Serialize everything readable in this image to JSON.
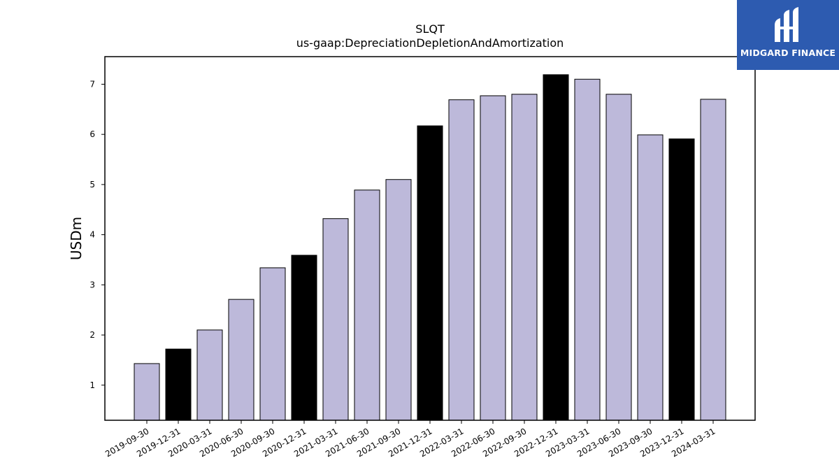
{
  "chart_data": {
    "type": "bar",
    "title": "SLQT",
    "subtitle": "us-gaap:DepreciationDepletionAndAmortization",
    "xlabel": "",
    "ylabel": "USDm",
    "ylim": [
      0.3,
      7.55
    ],
    "yticks": [
      1,
      2,
      3,
      4,
      5,
      6,
      7
    ],
    "grid": false,
    "categories": [
      "2019-09-30",
      "2019-12-31",
      "2020-03-31",
      "2020-06-30",
      "2020-09-30",
      "2020-12-31",
      "2021-03-31",
      "2021-06-30",
      "2021-09-30",
      "2021-12-31",
      "2022-03-31",
      "2022-06-30",
      "2022-09-30",
      "2022-12-31",
      "2023-03-31",
      "2023-06-30",
      "2023-09-30",
      "2023-12-31",
      "2024-03-31"
    ],
    "values": [
      1.43,
      1.72,
      2.1,
      2.71,
      3.34,
      3.59,
      4.32,
      4.89,
      5.1,
      6.17,
      6.69,
      6.77,
      6.8,
      7.19,
      7.1,
      6.8,
      5.99,
      5.91,
      6.7
    ],
    "bar_colors": [
      "#bdb9da",
      "#000000",
      "#bdb9da",
      "#bdb9da",
      "#bdb9da",
      "#000000",
      "#bdb9da",
      "#bdb9da",
      "#bdb9da",
      "#000000",
      "#bdb9da",
      "#bdb9da",
      "#bdb9da",
      "#000000",
      "#bdb9da",
      "#bdb9da",
      "#bdb9da",
      "#000000",
      "#bdb9da"
    ]
  },
  "logo": {
    "text": "MIDGARD FINANCE",
    "background": "#2d5bb0"
  }
}
